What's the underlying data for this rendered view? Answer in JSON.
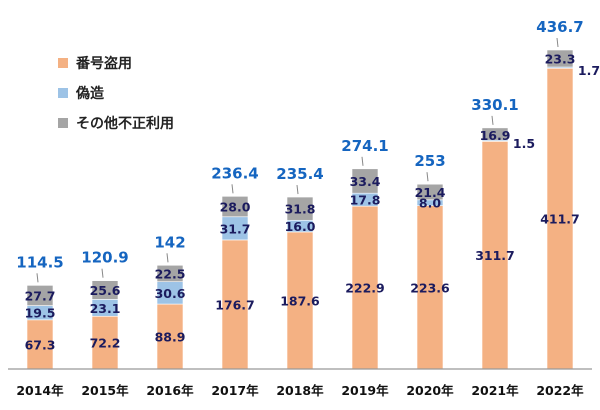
{
  "chart_data": {
    "type": "bar",
    "stacked": true,
    "title": "",
    "xlabel": "",
    "ylabel": "",
    "ylim": [
      0,
      440
    ],
    "grid": false,
    "legend_position": "top-left",
    "categories": [
      "2014年",
      "2015年",
      "2016年",
      "2017年",
      "2018年",
      "2019年",
      "2020年",
      "2021年",
      "2022年"
    ],
    "series": [
      {
        "name": "番号盗用",
        "color": "#F4B183",
        "values": [
          67.3,
          72.2,
          88.9,
          176.7,
          187.6,
          222.9,
          223.6,
          311.7,
          411.7
        ],
        "labels": [
          "67.3",
          "72.2",
          "88.9",
          "176.7",
          "187.6",
          "222.9",
          "223.6",
          "311.7",
          "411.7"
        ]
      },
      {
        "name": "偽造",
        "color": "#9DC3E6",
        "values": [
          19.5,
          23.1,
          30.6,
          31.7,
          16.0,
          17.8,
          8.0,
          1.5,
          1.7
        ],
        "labels": [
          "19.5",
          "23.1",
          "30.6",
          "31.7",
          "16.0",
          "17.8",
          "8.0",
          "1.5",
          "1.7"
        ]
      },
      {
        "name": "その他不正利用",
        "color": "#A5A5A5",
        "values": [
          27.7,
          25.6,
          22.5,
          28.0,
          31.8,
          33.4,
          21.4,
          16.9,
          23.3
        ],
        "labels": [
          "27.7",
          "25.6",
          "22.5",
          "28.0",
          "31.8",
          "33.4",
          "21.4",
          "16.9",
          "23.3"
        ]
      }
    ],
    "totals": [
      "114.5",
      "120.9",
      "142",
      "236.4",
      "235.4",
      "274.1",
      "253",
      "330.1",
      "436.7"
    ]
  }
}
